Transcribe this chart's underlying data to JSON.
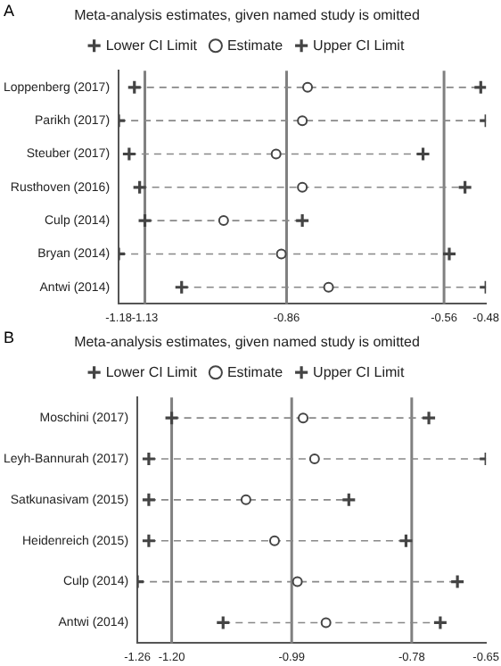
{
  "chart_data": [
    {
      "type": "scatter",
      "orientation": "horizontal",
      "title": "Meta-analysis estimates, given named study is omitted",
      "annotations": [
        "A"
      ],
      "categories": [
        "Loppenberg (2017)",
        "Parikh (2017)",
        "Steuber (2017)",
        "Rusthoven (2016)",
        "Culp (2014)",
        "Bryan (2014)",
        "Antwi (2014)"
      ],
      "series": [
        {
          "name": "Lower CI Limit",
          "color": "#444444",
          "marker": "cross",
          "values": [
            -1.15,
            -1.18,
            -1.16,
            -1.14,
            -1.13,
            -1.18,
            -1.06
          ]
        },
        {
          "name": "Estimate",
          "color": "#444444",
          "marker": "circle",
          "values": [
            -0.82,
            -0.83,
            -0.88,
            -0.83,
            -0.98,
            -0.87,
            -0.78
          ]
        },
        {
          "name": "Upper CI Limit",
          "color": "#444444",
          "marker": "cross",
          "values": [
            -0.49,
            -0.48,
            -0.6,
            -0.52,
            -0.83,
            -0.55,
            -0.48
          ]
        }
      ],
      "xlim": [
        -1.18,
        -0.48
      ],
      "xticks": [
        -1.18,
        -1.13,
        -0.86,
        -0.56,
        -0.48
      ],
      "ref_lines": [
        {
          "axis": "x",
          "value": -1.13
        },
        {
          "axis": "x",
          "value": -0.86
        },
        {
          "axis": "x",
          "value": -0.56
        }
      ],
      "line_style": "dashed",
      "legend": "top",
      "grid": false
    },
    {
      "type": "scatter",
      "orientation": "horizontal",
      "title": "Meta-analysis estimates, given named study is omitted",
      "annotations": [
        "B"
      ],
      "categories": [
        "Moschini (2017)",
        "Leyh-Bannurah (2017)",
        "Satkunasivam (2015)",
        "Heidenreich (2015)",
        "Culp (2014)",
        "Antwi (2014)"
      ],
      "series": [
        {
          "name": "Lower CI Limit",
          "color": "#444444",
          "marker": "cross",
          "values": [
            -1.2,
            -1.24,
            -1.24,
            -1.24,
            -1.26,
            -1.11
          ]
        },
        {
          "name": "Estimate",
          "color": "#444444",
          "marker": "circle",
          "values": [
            -0.97,
            -0.95,
            -1.07,
            -1.02,
            -0.98,
            -0.93
          ]
        },
        {
          "name": "Upper CI Limit",
          "color": "#444444",
          "marker": "cross",
          "values": [
            -0.75,
            -0.65,
            -0.89,
            -0.79,
            -0.7,
            -0.73
          ]
        }
      ],
      "xlim": [
        -1.26,
        -0.65
      ],
      "xticks": [
        -1.26,
        {
          "value": -1.2,
          "label": "-1.20"
        },
        -0.99,
        -0.78,
        -0.65
      ],
      "ref_lines": [
        {
          "axis": "x",
          "value": -1.2
        },
        {
          "axis": "x",
          "value": -0.99
        },
        {
          "axis": "x",
          "value": -0.78
        }
      ],
      "line_style": "dashed",
      "legend": "top",
      "grid": false
    }
  ]
}
